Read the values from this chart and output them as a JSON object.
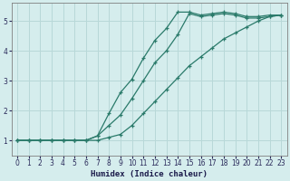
{
  "xlabel": "Humidex (Indice chaleur)",
  "ylabel": "",
  "background_color": "#d5eded",
  "grid_color": "#b8d8d8",
  "line_color": "#2a7a6a",
  "xlim": [
    -0.5,
    23.5
  ],
  "ylim": [
    0.5,
    5.6
  ],
  "xticks": [
    0,
    1,
    2,
    3,
    4,
    5,
    6,
    7,
    8,
    9,
    10,
    11,
    12,
    13,
    14,
    15,
    16,
    17,
    18,
    19,
    20,
    21,
    22,
    23
  ],
  "yticks": [
    1,
    2,
    3,
    4,
    5
  ],
  "curve1_x": [
    0,
    1,
    2,
    3,
    4,
    5,
    6,
    7,
    8,
    9,
    10,
    11,
    12,
    13,
    14,
    15,
    16,
    17,
    18,
    19,
    20,
    21,
    22,
    23
  ],
  "curve1_y": [
    1.0,
    1.0,
    1.0,
    1.0,
    1.0,
    1.0,
    1.0,
    1.0,
    1.1,
    1.2,
    1.5,
    1.9,
    2.3,
    2.7,
    3.1,
    3.5,
    3.8,
    4.1,
    4.4,
    4.6,
    4.8,
    5.0,
    5.15,
    5.2
  ],
  "curve2_x": [
    0,
    1,
    2,
    3,
    4,
    5,
    6,
    7,
    8,
    9,
    10,
    11,
    12,
    13,
    14,
    15,
    16,
    17,
    18,
    19,
    20,
    21,
    22,
    23
  ],
  "curve2_y": [
    1.0,
    1.0,
    1.0,
    1.0,
    1.0,
    1.0,
    1.0,
    1.15,
    1.5,
    1.85,
    2.4,
    3.0,
    3.6,
    4.0,
    4.55,
    5.25,
    5.15,
    5.2,
    5.25,
    5.2,
    5.1,
    5.1,
    5.15,
    5.2
  ],
  "curve3_x": [
    0,
    1,
    2,
    3,
    4,
    5,
    6,
    7,
    8,
    9,
    10,
    11,
    12,
    13,
    14,
    15,
    16,
    17,
    18,
    19,
    20,
    21,
    22,
    23
  ],
  "curve3_y": [
    1.0,
    1.0,
    1.0,
    1.0,
    1.0,
    1.0,
    1.0,
    1.15,
    1.9,
    2.6,
    3.05,
    3.75,
    4.35,
    4.75,
    5.3,
    5.3,
    5.2,
    5.25,
    5.3,
    5.25,
    5.15,
    5.15,
    5.2,
    5.2
  ]
}
